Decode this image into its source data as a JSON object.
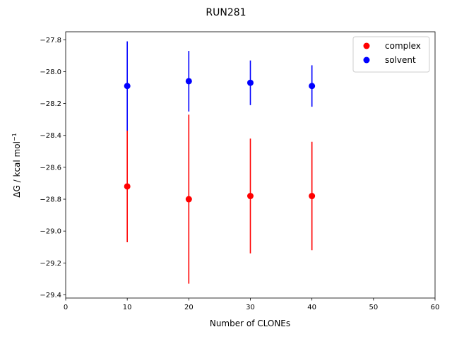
{
  "chart_data": {
    "type": "scatter",
    "title": "RUN281",
    "xlabel": "Number of CLONEs",
    "ylabel": "ΔG / kcal mol",
    "ylabel_sup": "−1",
    "xlim": [
      0,
      60
    ],
    "ylim": [
      -29.42,
      -27.75
    ],
    "x_ticks": [
      0,
      10,
      20,
      30,
      40,
      50,
      60
    ],
    "x_tick_labels": [
      "0",
      "10",
      "20",
      "30",
      "40",
      "50",
      "60"
    ],
    "y_ticks": [
      -27.8,
      -28.0,
      -28.2,
      -28.4,
      -28.6,
      -28.8,
      -29.0,
      -29.2,
      -29.4
    ],
    "y_tick_labels": [
      "−27.8",
      "−28.0",
      "−28.2",
      "−28.4",
      "−28.6",
      "−28.8",
      "−29.0",
      "−29.2",
      "−29.4"
    ],
    "grid": false,
    "legend_position": "top-right",
    "series": [
      {
        "name": "complex",
        "color": "#ff0000",
        "x": [
          10,
          20,
          30,
          40
        ],
        "y": [
          -28.72,
          -28.8,
          -28.78,
          -28.78
        ],
        "yerr": [
          0.35,
          0.53,
          0.36,
          0.34
        ]
      },
      {
        "name": "solvent",
        "color": "#0000ff",
        "x": [
          10,
          20,
          30,
          40
        ],
        "y": [
          -28.09,
          -28.06,
          -28.07,
          -28.09
        ],
        "yerr": [
          0.28,
          0.19,
          0.14,
          0.13
        ]
      }
    ]
  }
}
